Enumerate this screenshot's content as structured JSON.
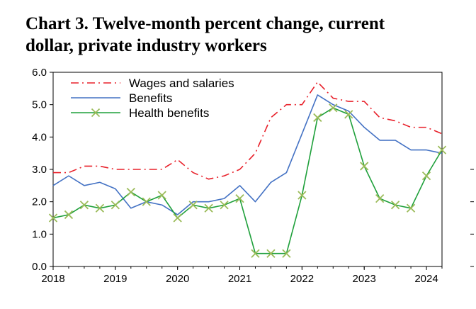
{
  "chart_data": {
    "type": "line",
    "title_line1": "Chart 3. Twelve-month percent change, current",
    "title_line2": "dollar, private industry workers",
    "xlabel": "",
    "ylabel": "",
    "xlim": [
      2018.0,
      2024.25
    ],
    "ylim": [
      0.0,
      6.0
    ],
    "x_ticks": [
      "2018",
      "2019",
      "2020",
      "2021",
      "2022",
      "2023",
      "2024"
    ],
    "y_ticks": [
      "0.0",
      "1.0",
      "2.0",
      "3.0",
      "4.0",
      "5.0",
      "6.0"
    ],
    "grid": false,
    "legend_position": "top-left",
    "x": [
      2018.0,
      2018.25,
      2018.5,
      2018.75,
      2019.0,
      2019.25,
      2019.5,
      2019.75,
      2020.0,
      2020.25,
      2020.5,
      2020.75,
      2021.0,
      2021.25,
      2021.5,
      2021.75,
      2022.0,
      2022.25,
      2022.5,
      2022.75,
      2023.0,
      2023.25,
      2023.5,
      2023.75,
      2024.0,
      2024.25
    ],
    "series": [
      {
        "name": "Wages and salaries",
        "color": "#e8202a",
        "style": "dash-dot",
        "values": [
          2.9,
          2.9,
          3.1,
          3.1,
          3.0,
          3.0,
          3.0,
          3.0,
          3.3,
          2.9,
          2.7,
          2.8,
          3.0,
          3.5,
          4.6,
          5.0,
          5.0,
          5.7,
          5.2,
          5.1,
          5.1,
          4.6,
          4.5,
          4.3,
          4.3,
          4.1
        ]
      },
      {
        "name": "Benefits",
        "color": "#4472c4",
        "style": "solid",
        "values": [
          2.5,
          2.8,
          2.5,
          2.6,
          2.4,
          1.8,
          2.0,
          1.9,
          1.6,
          2.0,
          2.0,
          2.1,
          2.5,
          2.0,
          2.6,
          2.9,
          4.1,
          5.3,
          5.0,
          4.8,
          4.3,
          3.9,
          3.9,
          3.6,
          3.6,
          3.5
        ]
      },
      {
        "name": "Health benefits",
        "color": "#1fa03b",
        "marker_color": "#9bbb59",
        "style": "solid",
        "marker": "x",
        "values": [
          1.5,
          1.6,
          1.9,
          1.8,
          1.9,
          2.3,
          2.0,
          2.2,
          1.5,
          1.9,
          1.8,
          1.9,
          2.1,
          0.4,
          0.4,
          0.4,
          2.2,
          4.6,
          4.9,
          4.7,
          3.1,
          2.1,
          1.9,
          1.8,
          2.8,
          3.6
        ]
      }
    ]
  }
}
